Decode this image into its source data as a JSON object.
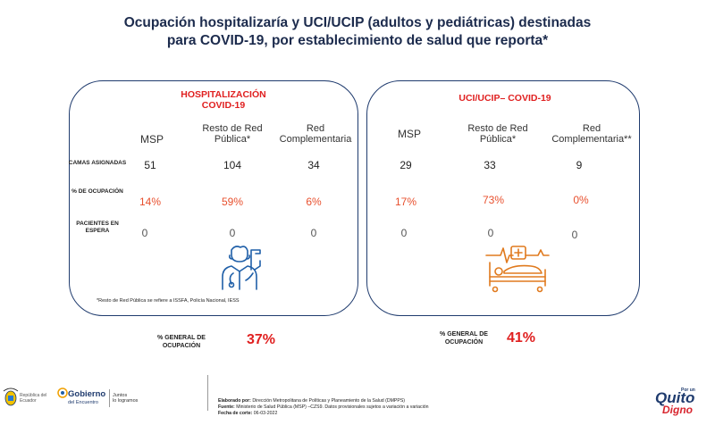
{
  "title": {
    "line1": "Ocupación hospitalizaría y UCI/UCIP (adultos y pediátricas) destinadas",
    "line2": "para COVID-19, por establecimiento de salud que reporta*"
  },
  "row_labels": {
    "camas": "CAMAS ASIGNADAS",
    "ocupacion": "% DE OCUPACIÓN",
    "pacientes": "PACIENTES EN ESPERA"
  },
  "hospitalizacion": {
    "title1": "HOSPITALIZACIÓN",
    "title2": "COVID-19",
    "columns": [
      "MSP",
      "Resto de Red Pública*",
      "Red Complementaria"
    ],
    "camas": [
      "51",
      "104",
      "34"
    ],
    "ocupacion": [
      "14%",
      "59%",
      "6%"
    ],
    "pacientes": [
      "0",
      "0",
      "0"
    ],
    "note": "*Resto de Red Pública se refiere a ISSFA, Policía Nacional, IESS",
    "general_label": "% GENERAL DE OCUPACIÓN",
    "general_value": "37%"
  },
  "uci": {
    "title": "UCI/UCIP– COVID-19",
    "columns": [
      "MSP",
      "Resto de Red Pública*",
      "Red Complementaria**"
    ],
    "camas": [
      "29",
      "33",
      "9"
    ],
    "ocupacion": [
      "17%",
      "73%",
      "0%"
    ],
    "pacientes": [
      "0",
      "0",
      "0"
    ],
    "general_label": "% GENERAL DE OCUPACIÓN",
    "general_value": "41%"
  },
  "footer": {
    "elaborado_label": "Elaborado por:",
    "elaborado": "Dirección Metropolitana de Políticas y Planeamiento de la Salud (DMPPS)",
    "fuente_label": "Fuente:",
    "fuente": "Ministerio de Salud Pública (MSP) –CZS9. Datos provisionales sujetos a variación a variación",
    "fecha_label": "Fecha de corte:",
    "fecha": "06-03-2022",
    "republica": "República del Ecuador",
    "gobierno": "Gobierno",
    "gobierno_sub": "del Encuentro",
    "juntos1": "Juntos",
    "juntos2": "lo logramos",
    "quito_por": "Por un",
    "quito": "Quito",
    "digno": "Digno"
  },
  "colors": {
    "navy": "#1f3b6e",
    "red": "#e02020",
    "orange": "#e8502e"
  }
}
